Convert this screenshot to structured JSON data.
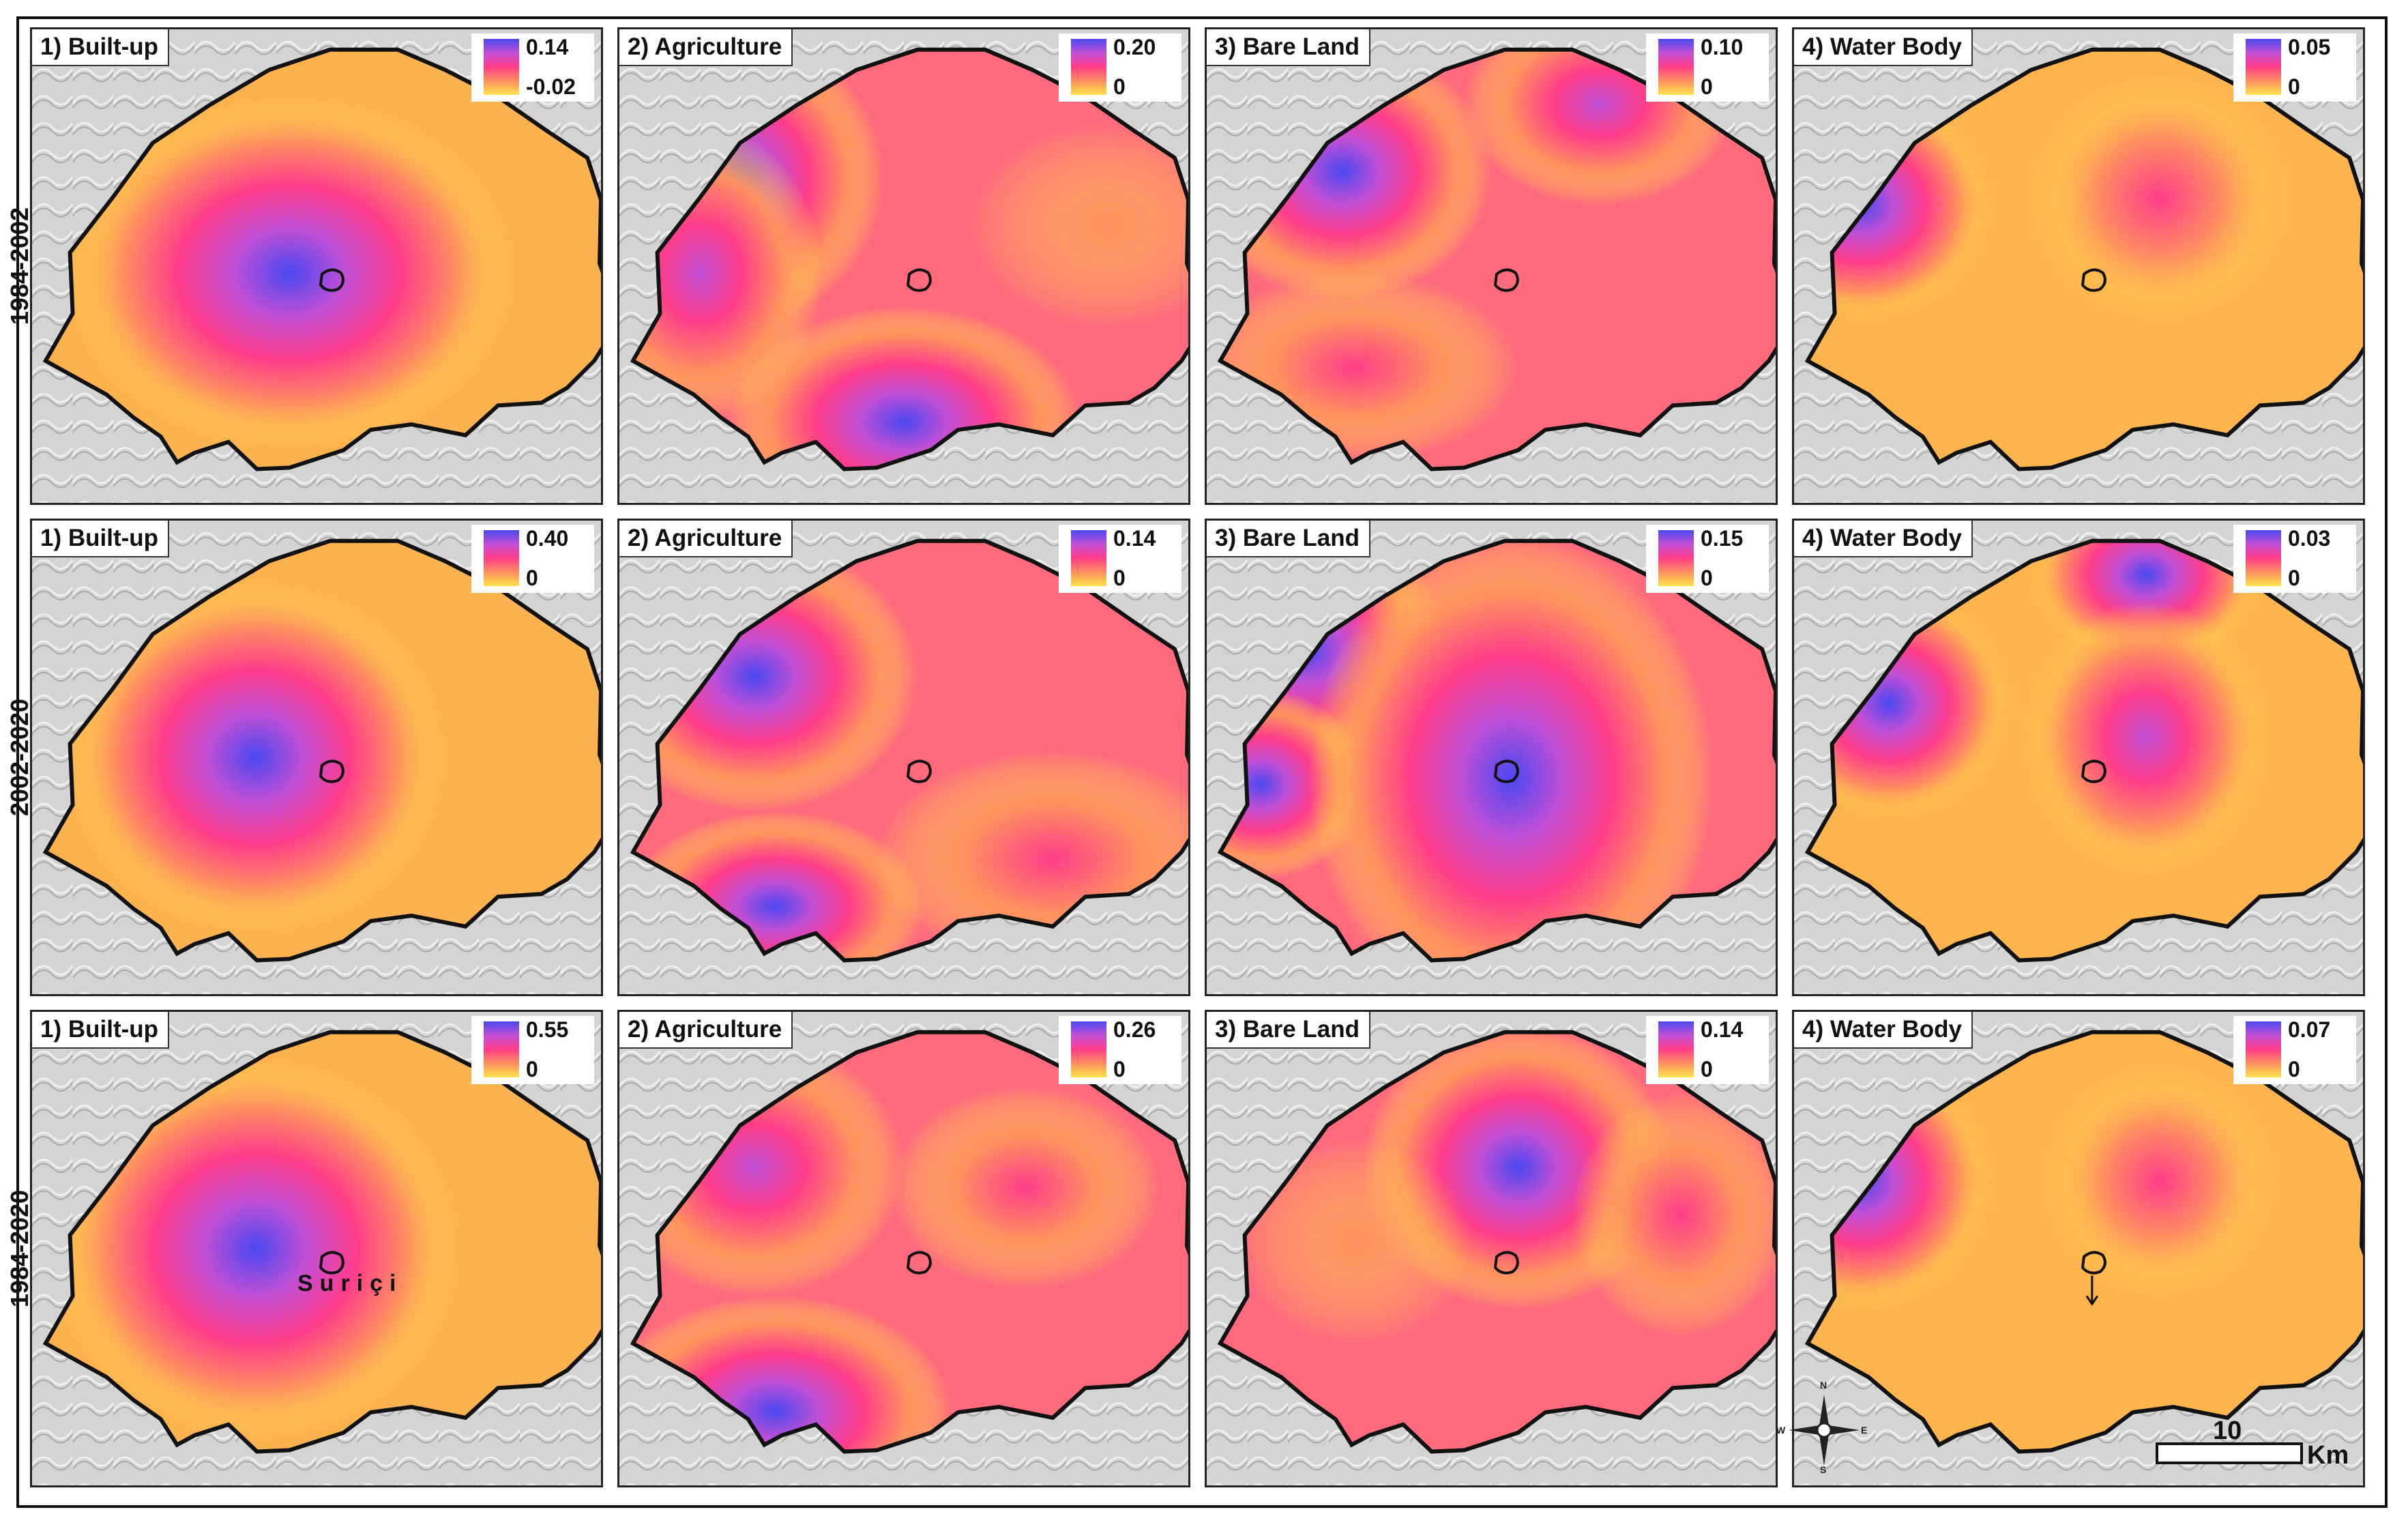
{
  "figure": {
    "periods": [
      "1984-2002",
      "2002-2020",
      "1984-2020"
    ],
    "classes": [
      "1) Built-up",
      "2) Agriculture",
      "3) Bare Land",
      "4) Water Body"
    ],
    "legend_colors": [
      "#4a48f0",
      "#c04fd6",
      "#ff3d8a",
      "#ff9060",
      "#ffe24a"
    ],
    "panels": [
      [
        {
          "title": "1) Built-up",
          "max": "0.14",
          "min": "-0.02"
        },
        {
          "title": "2) Agriculture",
          "max": "0.20",
          "min": "0"
        },
        {
          "title": "3) Bare Land",
          "max": "0.10",
          "min": "0"
        },
        {
          "title": "4) Water Body",
          "max": "0.05",
          "min": "0"
        }
      ],
      [
        {
          "title": "1) Built-up",
          "max": "0.40",
          "min": "0"
        },
        {
          "title": "2) Agriculture",
          "max": "0.14",
          "min": "0"
        },
        {
          "title": "3) Bare Land",
          "max": "0.15",
          "min": "0"
        },
        {
          "title": "4) Water Body",
          "max": "0.03",
          "min": "0"
        }
      ],
      [
        {
          "title": "1) Built-up",
          "max": "0.55",
          "min": "0"
        },
        {
          "title": "2) Agriculture",
          "max": "0.26",
          "min": "0"
        },
        {
          "title": "3) Bare Land",
          "max": "0.14",
          "min": "0"
        },
        {
          "title": "4) Water Body",
          "max": "0.07",
          "min": "0"
        }
      ]
    ],
    "annotation": "Suriçi",
    "scale": {
      "value": "10",
      "unit": "Km"
    },
    "compass": {
      "n": "N",
      "s": "S",
      "e": "E",
      "w": "W"
    }
  }
}
